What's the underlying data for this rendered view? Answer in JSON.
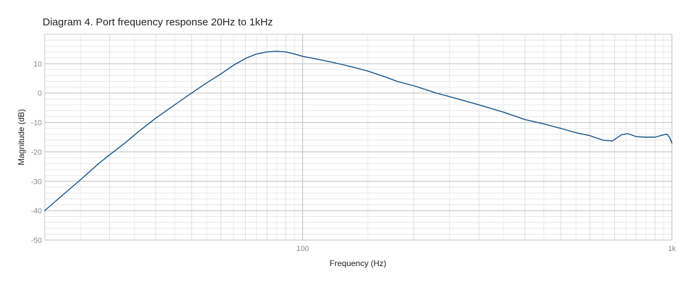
{
  "chart_data": {
    "type": "line",
    "title": "Diagram 4. Port frequency response 20Hz to 1kHz",
    "xlabel": "Frequency (Hz)",
    "ylabel": "Magnitude (dB)",
    "xscale": "log",
    "xlim": [
      20,
      1000
    ],
    "ylim": [
      -50,
      20
    ],
    "grid": true,
    "xticks": [
      {
        "value": 100,
        "label": "100"
      },
      {
        "value": 1000,
        "label": "1k"
      }
    ],
    "yticks": [
      {
        "value": 10,
        "label": "10"
      },
      {
        "value": 0,
        "label": "0"
      },
      {
        "value": -10,
        "label": "-10"
      },
      {
        "value": -20,
        "label": "-20"
      },
      {
        "value": -30,
        "label": "-30"
      },
      {
        "value": -40,
        "label": "-40"
      },
      {
        "value": -50,
        "label": "-50"
      }
    ],
    "series": [
      {
        "color": "#0d4f86",
        "points": [
          [
            20,
            -40
          ],
          [
            22,
            -35.5
          ],
          [
            25,
            -29.5
          ],
          [
            28,
            -24
          ],
          [
            30,
            -21
          ],
          [
            33,
            -17
          ],
          [
            36,
            -13
          ],
          [
            40,
            -8.5
          ],
          [
            45,
            -4
          ],
          [
            50,
            0
          ],
          [
            55,
            3.5
          ],
          [
            60,
            6.5
          ],
          [
            65,
            9.5
          ],
          [
            70,
            11.8
          ],
          [
            75,
            13.3
          ],
          [
            80,
            14
          ],
          [
            85,
            14.2
          ],
          [
            90,
            14
          ],
          [
            95,
            13.3
          ],
          [
            100,
            12.5
          ],
          [
            110,
            11.5
          ],
          [
            120,
            10.5
          ],
          [
            130,
            9.5
          ],
          [
            140,
            8.5
          ],
          [
            150,
            7.5
          ],
          [
            160,
            6.3
          ],
          [
            170,
            5.2
          ],
          [
            180,
            4
          ],
          [
            200,
            2.5
          ],
          [
            230,
            0
          ],
          [
            260,
            -1.8
          ],
          [
            300,
            -4
          ],
          [
            350,
            -6.5
          ],
          [
            400,
            -9
          ],
          [
            450,
            -10.5
          ],
          [
            500,
            -12
          ],
          [
            550,
            -13.5
          ],
          [
            600,
            -14.5
          ],
          [
            650,
            -16
          ],
          [
            690,
            -16.3
          ],
          [
            730,
            -14.2
          ],
          [
            760,
            -13.8
          ],
          [
            800,
            -14.8
          ],
          [
            850,
            -15
          ],
          [
            900,
            -15
          ],
          [
            950,
            -14.2
          ],
          [
            970,
            -14
          ],
          [
            985,
            -15
          ],
          [
            1000,
            -17
          ]
        ]
      }
    ]
  }
}
